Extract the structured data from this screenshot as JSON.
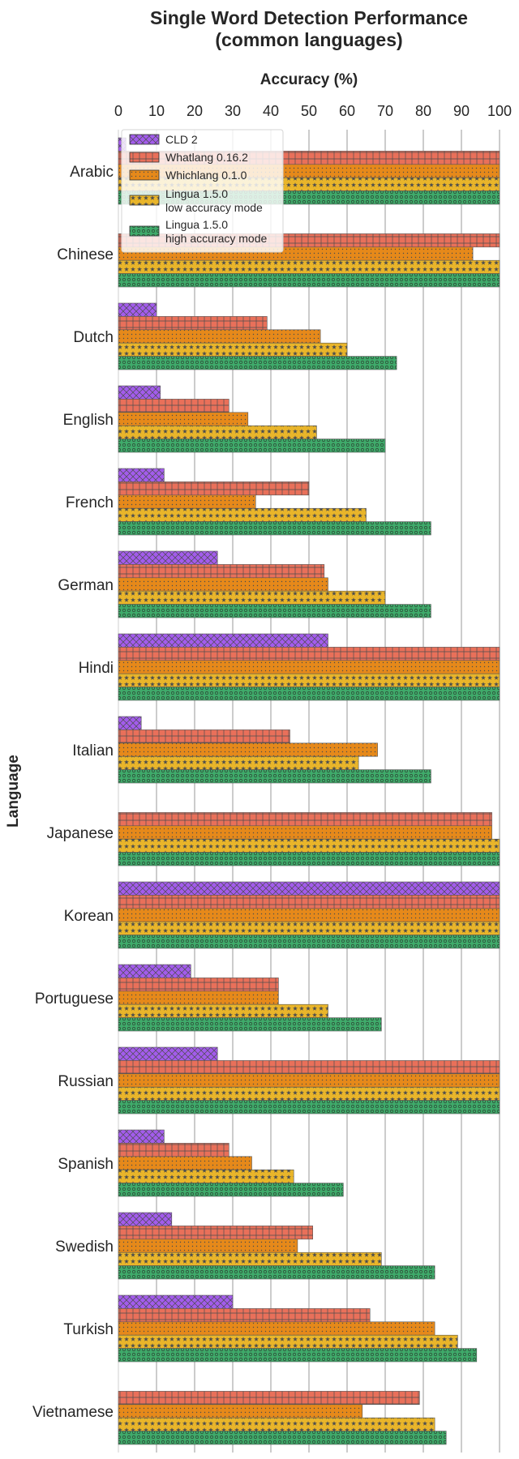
{
  "chart_data": {
    "type": "bar",
    "orientation": "horizontal",
    "title": "Single Word Detection Performance\n(common languages)",
    "xlabel": "Accuracy (%)",
    "ylabel": "Language",
    "xlim": [
      0,
      100
    ],
    "xticks": [
      0,
      10,
      20,
      30,
      40,
      50,
      60,
      70,
      80,
      90,
      100
    ],
    "grid": "vertical",
    "legend_position": "top-left",
    "categories": [
      "Arabic",
      "Chinese",
      "Dutch",
      "English",
      "French",
      "German",
      "Hindi",
      "Italian",
      "Japanese",
      "Korean",
      "Portuguese",
      "Russian",
      "Spanish",
      "Swedish",
      "Turkish",
      "Vietnamese"
    ],
    "series": [
      {
        "name": "CLD 2",
        "color": "#a35cec",
        "pattern": "crosshatch",
        "values": [
          2,
          0,
          10,
          11,
          12,
          26,
          55,
          6,
          0,
          100,
          19,
          26,
          12,
          14,
          30,
          0
        ]
      },
      {
        "name": "Whatlang 0.16.2",
        "color": "#e9705a",
        "pattern": "grid",
        "values": [
          100,
          100,
          39,
          29,
          50,
          54,
          100,
          45,
          98,
          100,
          42,
          100,
          29,
          51,
          66,
          79
        ]
      },
      {
        "name": "Whichlang 0.1.0",
        "color": "#e6891a",
        "pattern": "dots",
        "values": [
          100,
          93,
          53,
          34,
          36,
          55,
          100,
          68,
          98,
          100,
          42,
          100,
          35,
          47,
          83,
          64
        ]
      },
      {
        "name": "Lingua 1.5.0\nlow accuracy mode",
        "color": "#e9b52a",
        "pattern": "stars",
        "values": [
          100,
          100,
          60,
          52,
          65,
          70,
          100,
          63,
          100,
          100,
          55,
          100,
          46,
          69,
          89,
          83
        ]
      },
      {
        "name": "Lingua 1.5.0\nhigh accuracy mode",
        "color": "#3faa6a",
        "pattern": "circles",
        "values": [
          100,
          100,
          73,
          70,
          82,
          82,
          100,
          82,
          100,
          100,
          69,
          100,
          59,
          83,
          94,
          86
        ]
      }
    ]
  }
}
